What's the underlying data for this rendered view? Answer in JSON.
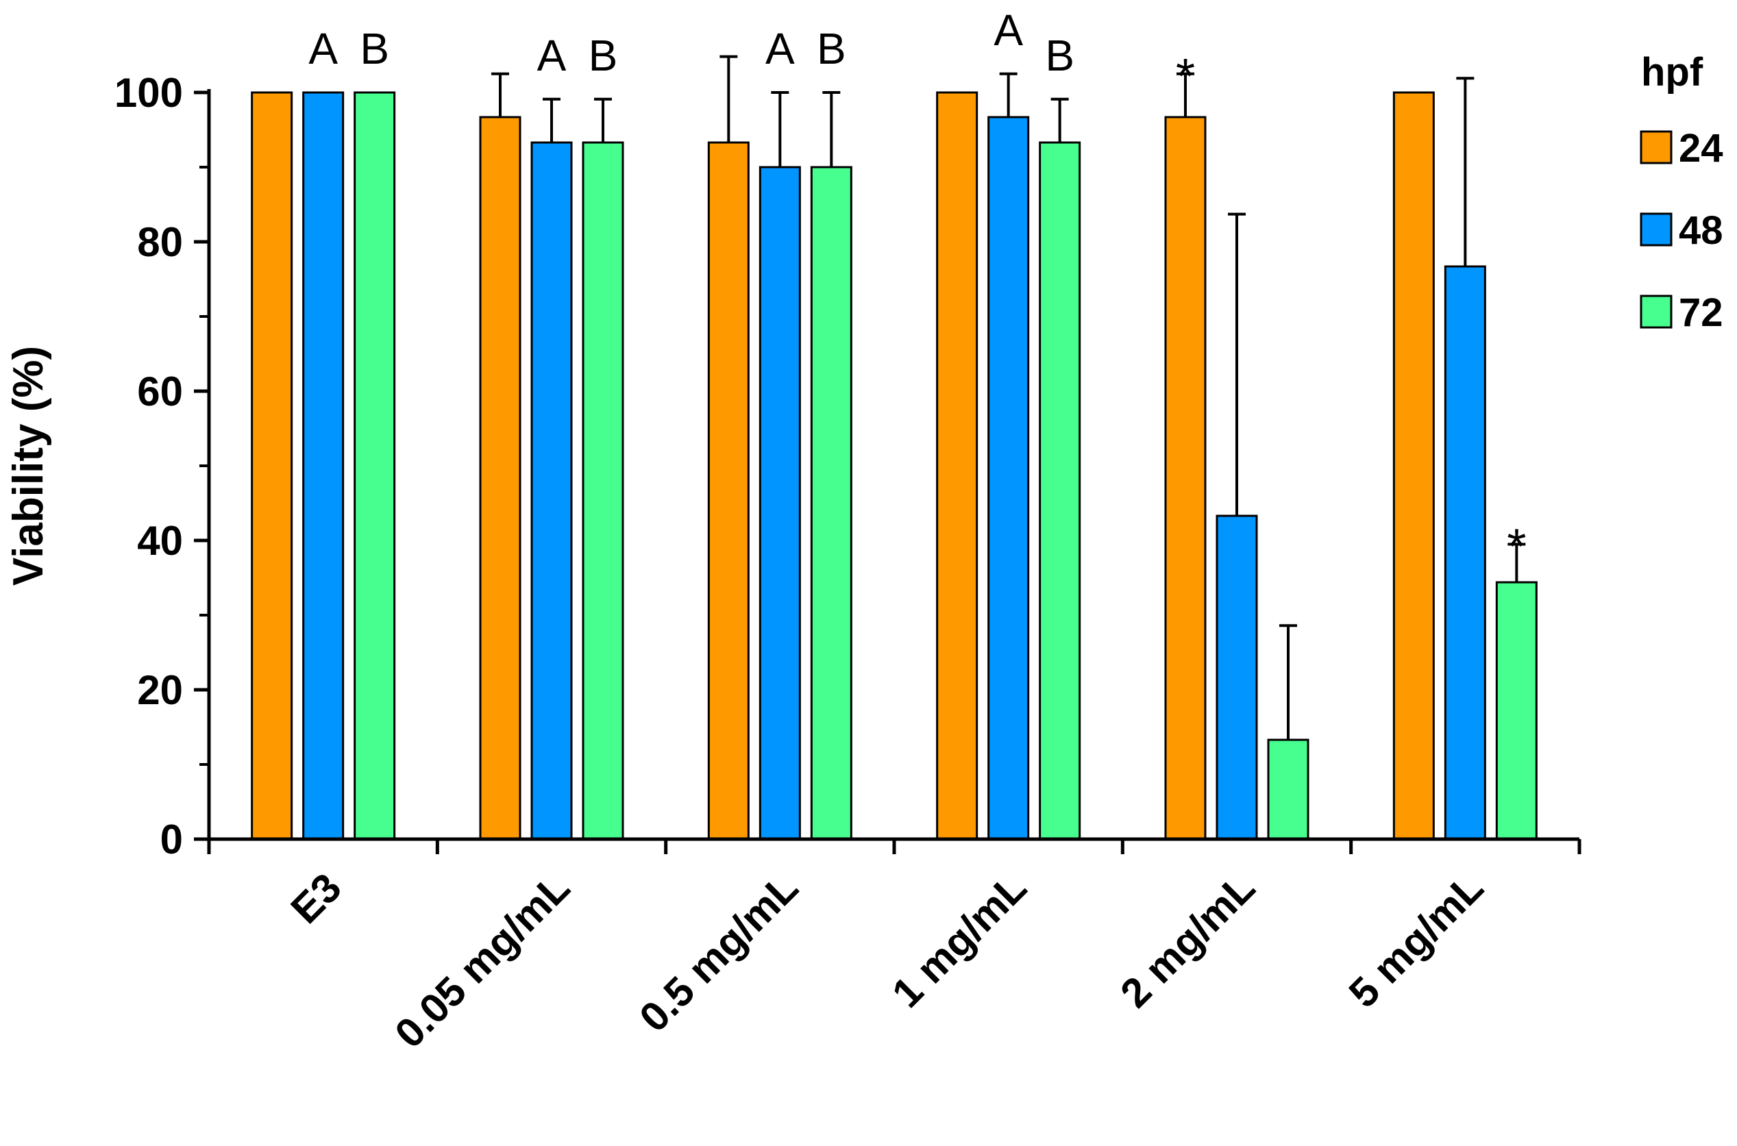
{
  "chart_data": {
    "type": "bar",
    "ylabel": "Viability (%)",
    "xlabel": "",
    "ylim": [
      0,
      100
    ],
    "yticks": [
      0,
      20,
      40,
      60,
      80,
      100
    ],
    "categories": [
      "E3",
      "0.05 mg/mL",
      "0.5 mg/mL",
      "1 mg/mL",
      "2 mg/mL",
      "5 mg/mL"
    ],
    "legend": {
      "title": "hpf",
      "position": "right"
    },
    "series": [
      {
        "name": "24",
        "color": "#FF9900",
        "values": [
          100,
          96.7,
          93.3,
          100,
          96.7,
          100
        ],
        "errors": [
          0,
          5.8,
          11.5,
          0,
          5.8,
          0
        ]
      },
      {
        "name": "48",
        "color": "#0095FF",
        "values": [
          100,
          93.3,
          90,
          96.7,
          43.3,
          76.7
        ],
        "errors": [
          0,
          5.8,
          10,
          5.8,
          40.4,
          25.2
        ]
      },
      {
        "name": "72",
        "color": "#47FF8E",
        "values": [
          100,
          93.3,
          90,
          93.3,
          13.3,
          34.4
        ],
        "errors": [
          0,
          5.8,
          10,
          5.8,
          15.3,
          5.1
        ]
      }
    ],
    "annotations": [
      {
        "category": 0,
        "series": 1,
        "text": "A"
      },
      {
        "category": 0,
        "series": 2,
        "text": "B"
      },
      {
        "category": 1,
        "series": 1,
        "text": "A"
      },
      {
        "category": 1,
        "series": 2,
        "text": "B"
      },
      {
        "category": 2,
        "series": 1,
        "text": "A"
      },
      {
        "category": 2,
        "series": 2,
        "text": "B"
      },
      {
        "category": 3,
        "series": 1,
        "text": "A"
      },
      {
        "category": 3,
        "series": 2,
        "text": "B"
      },
      {
        "category": 4,
        "series": 0,
        "text": "*"
      },
      {
        "category": 5,
        "series": 2,
        "text": "*"
      }
    ],
    "grid": false
  }
}
